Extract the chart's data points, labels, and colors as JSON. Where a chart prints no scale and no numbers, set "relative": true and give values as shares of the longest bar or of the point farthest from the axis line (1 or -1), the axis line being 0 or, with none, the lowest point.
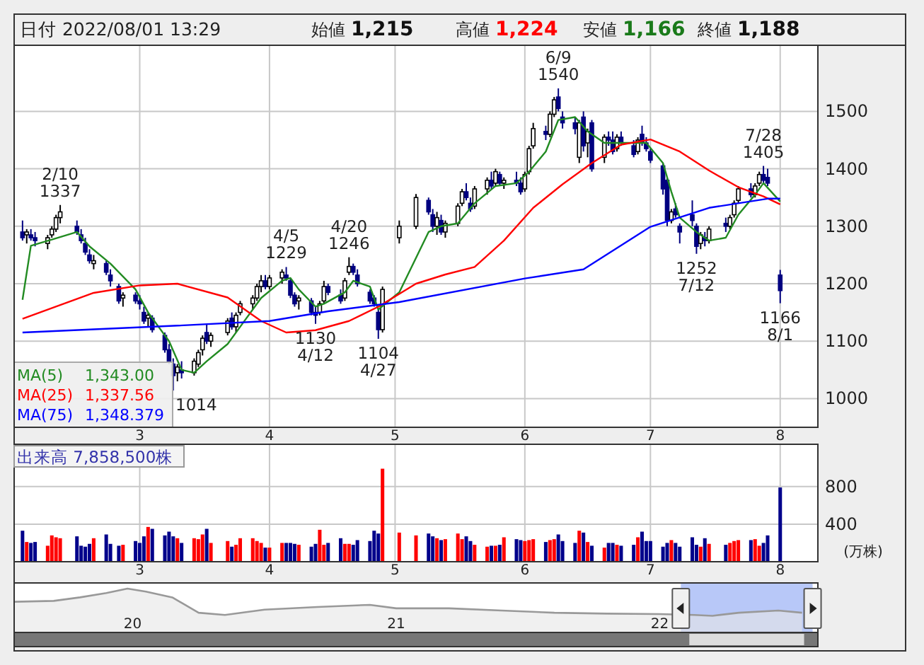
{
  "chart_data": [
    {
      "type": "candlestick",
      "title": "日付 2022/08/01 13:29",
      "annotations": [
        "始値 1,215",
        "高値 1,224",
        "安値 1,166",
        "終値 1,188",
        "1,343.00",
        "1,337.56",
        "1,348.379",
        {
          "text": "2/10\n1337",
          "x": "2022-02-10",
          "y": 1337
        },
        {
          "text": "1014",
          "x": "2022-03-09",
          "y": 1014
        },
        {
          "text": "4/5\n1229",
          "x": "2022-04-05",
          "y": 1229
        },
        {
          "text": "1130\n4/12",
          "x": "2022-04-12",
          "y": 1130
        },
        {
          "text": "4/20\n1246",
          "x": "2022-04-20",
          "y": 1246
        },
        {
          "text": "1104\n4/27",
          "x": "2022-04-27",
          "y": 1104
        },
        {
          "text": "6/9\n1540",
          "x": "2022-06-09",
          "y": 1540
        },
        {
          "text": "1252\n7/12",
          "x": "2022-07-12",
          "y": 1252
        },
        {
          "text": "7/28\n1405",
          "x": "2022-07-28",
          "y": 1405
        },
        {
          "text": "1166\n8/1",
          "x": "2022-08-01",
          "y": 1166
        }
      ],
      "x": [
        "2022-02-01",
        "2022-02-02",
        "2022-02-03",
        "2022-02-04",
        "2022-02-07",
        "2022-02-08",
        "2022-02-09",
        "2022-02-10",
        "2022-02-14",
        "2022-02-15",
        "2022-02-16",
        "2022-02-17",
        "2022-02-18",
        "2022-02-21",
        "2022-02-22",
        "2022-02-24",
        "2022-02-25",
        "2022-02-28",
        "2022-03-01",
        "2022-03-02",
        "2022-03-03",
        "2022-03-04",
        "2022-03-07",
        "2022-03-08",
        "2022-03-09",
        "2022-03-10",
        "2022-03-11",
        "2022-03-14",
        "2022-03-15",
        "2022-03-16",
        "2022-03-17",
        "2022-03-18",
        "2022-03-22",
        "2022-03-23",
        "2022-03-24",
        "2022-03-25",
        "2022-03-28",
        "2022-03-29",
        "2022-03-30",
        "2022-03-31",
        "2022-04-01",
        "2022-04-04",
        "2022-04-05",
        "2022-04-06",
        "2022-04-07",
        "2022-04-08",
        "2022-04-11",
        "2022-04-12",
        "2022-04-13",
        "2022-04-14",
        "2022-04-15",
        "2022-04-18",
        "2022-04-19",
        "2022-04-20",
        "2022-04-21",
        "2022-04-22",
        "2022-04-25",
        "2022-04-26",
        "2022-04-27",
        "2022-04-28",
        "2022-05-02",
        "2022-05-06",
        "2022-05-09",
        "2022-05-10",
        "2022-05-11",
        "2022-05-12",
        "2022-05-13",
        "2022-05-16",
        "2022-05-17",
        "2022-05-18",
        "2022-05-19",
        "2022-05-20",
        "2022-05-23",
        "2022-05-24",
        "2022-05-25",
        "2022-05-26",
        "2022-05-27",
        "2022-05-30",
        "2022-05-31",
        "2022-06-01",
        "2022-06-02",
        "2022-06-03",
        "2022-06-06",
        "2022-06-07",
        "2022-06-08",
        "2022-06-09",
        "2022-06-10",
        "2022-06-13",
        "2022-06-14",
        "2022-06-15",
        "2022-06-16",
        "2022-06-17",
        "2022-06-20",
        "2022-06-21",
        "2022-06-22",
        "2022-06-23",
        "2022-06-24",
        "2022-06-27",
        "2022-06-28",
        "2022-06-29",
        "2022-06-30",
        "2022-07-01",
        "2022-07-04",
        "2022-07-05",
        "2022-07-06",
        "2022-07-07",
        "2022-07-08",
        "2022-07-11",
        "2022-07-12",
        "2022-07-13",
        "2022-07-14",
        "2022-07-15",
        "2022-07-19",
        "2022-07-20",
        "2022-07-21",
        "2022-07-22",
        "2022-07-25",
        "2022-07-26",
        "2022-07-27",
        "2022-07-28",
        "2022-07-29",
        "2022-08-01"
      ],
      "ohlc": [
        [
          1290,
          1310,
          1275,
          1280
        ],
        [
          1285,
          1295,
          1270,
          1290
        ],
        [
          1285,
          1295,
          1275,
          1280
        ],
        [
          1280,
          1290,
          1265,
          1275
        ],
        [
          1270,
          1285,
          1260,
          1280
        ],
        [
          1285,
          1300,
          1280,
          1295
        ],
        [
          1295,
          1320,
          1290,
          1315
        ],
        [
          1315,
          1337,
          1305,
          1325
        ],
        [
          1300,
          1310,
          1285,
          1290
        ],
        [
          1285,
          1295,
          1270,
          1275
        ],
        [
          1270,
          1280,
          1250,
          1255
        ],
        [
          1250,
          1260,
          1235,
          1240
        ],
        [
          1235,
          1250,
          1225,
          1240
        ],
        [
          1235,
          1240,
          1215,
          1220
        ],
        [
          1215,
          1225,
          1195,
          1205
        ],
        [
          1195,
          1200,
          1165,
          1170
        ],
        [
          1175,
          1185,
          1160,
          1180
        ],
        [
          1180,
          1185,
          1165,
          1170
        ],
        [
          1170,
          1180,
          1155,
          1165
        ],
        [
          1150,
          1160,
          1130,
          1135
        ],
        [
          1140,
          1150,
          1125,
          1145
        ],
        [
          1140,
          1145,
          1115,
          1120
        ],
        [
          1110,
          1115,
          1080,
          1085
        ],
        [
          1085,
          1095,
          1060,
          1065
        ],
        [
          1060,
          1070,
          1014,
          1040
        ],
        [
          1045,
          1060,
          1030,
          1055
        ],
        [
          1050,
          1065,
          1035,
          1045
        ],
        [
          1045,
          1070,
          1040,
          1065
        ],
        [
          1060,
          1085,
          1055,
          1080
        ],
        [
          1085,
          1110,
          1075,
          1105
        ],
        [
          1115,
          1130,
          1095,
          1100
        ],
        [
          1100,
          1115,
          1090,
          1110
        ],
        [
          1115,
          1140,
          1110,
          1135
        ],
        [
          1140,
          1150,
          1120,
          1125
        ],
        [
          1125,
          1150,
          1115,
          1145
        ],
        [
          1150,
          1170,
          1145,
          1165
        ],
        [
          1165,
          1180,
          1155,
          1175
        ],
        [
          1175,
          1200,
          1170,
          1195
        ],
        [
          1195,
          1215,
          1185,
          1205
        ],
        [
          1205,
          1215,
          1190,
          1195
        ],
        [
          1195,
          1215,
          1190,
          1210
        ],
        [
          1210,
          1225,
          1200,
          1220
        ],
        [
          1215,
          1229,
          1205,
          1210
        ],
        [
          1205,
          1210,
          1175,
          1180
        ],
        [
          1180,
          1185,
          1160,
          1165
        ],
        [
          1170,
          1180,
          1155,
          1175
        ],
        [
          1170,
          1175,
          1145,
          1150
        ],
        [
          1150,
          1160,
          1130,
          1145
        ],
        [
          1150,
          1170,
          1145,
          1165
        ],
        [
          1170,
          1205,
          1165,
          1195
        ],
        [
          1195,
          1200,
          1180,
          1185
        ],
        [
          1180,
          1190,
          1165,
          1170
        ],
        [
          1175,
          1210,
          1170,
          1205
        ],
        [
          1220,
          1246,
          1215,
          1230
        ],
        [
          1230,
          1235,
          1215,
          1220
        ],
        [
          1215,
          1225,
          1195,
          1200
        ],
        [
          1185,
          1190,
          1165,
          1170
        ],
        [
          1175,
          1180,
          1160,
          1165
        ],
        [
          1150,
          1155,
          1104,
          1120
        ],
        [
          1120,
          1195,
          1115,
          1190
        ],
        [
          1280,
          1310,
          1270,
          1300
        ],
        [
          1300,
          1356,
          1295,
          1350
        ],
        [
          1345,
          1350,
          1320,
          1325
        ],
        [
          1320,
          1330,
          1290,
          1300
        ],
        [
          1300,
          1325,
          1285,
          1315
        ],
        [
          1310,
          1320,
          1285,
          1290
        ],
        [
          1290,
          1310,
          1280,
          1305
        ],
        [
          1305,
          1340,
          1300,
          1335
        ],
        [
          1340,
          1365,
          1335,
          1360
        ],
        [
          1360,
          1375,
          1345,
          1350
        ],
        [
          1340,
          1350,
          1325,
          1330
        ],
        [
          1335,
          1370,
          1330,
          1365
        ],
        [
          1365,
          1385,
          1355,
          1380
        ],
        [
          1380,
          1395,
          1365,
          1370
        ],
        [
          1375,
          1400,
          1370,
          1395
        ],
        [
          1390,
          1395,
          1370,
          1375
        ],
        [
          1375,
          1385,
          1365,
          1380
        ],
        [
          1380,
          1395,
          1370,
          1375
        ],
        [
          1375,
          1385,
          1355,
          1360
        ],
        [
          1365,
          1395,
          1360,
          1390
        ],
        [
          1395,
          1440,
          1390,
          1435
        ],
        [
          1440,
          1480,
          1435,
          1470
        ],
        [
          1465,
          1475,
          1450,
          1460
        ],
        [
          1460,
          1500,
          1455,
          1495
        ],
        [
          1495,
          1525,
          1490,
          1520
        ],
        [
          1525,
          1540,
          1500,
          1505
        ],
        [
          1490,
          1500,
          1470,
          1480
        ],
        [
          1480,
          1490,
          1460,
          1470
        ],
        [
          1420,
          1485,
          1410,
          1480
        ],
        [
          1490,
          1500,
          1430,
          1440
        ],
        [
          1445,
          1470,
          1420,
          1465
        ],
        [
          1480,
          1485,
          1395,
          1400
        ],
        [
          1420,
          1460,
          1410,
          1455
        ],
        [
          1455,
          1465,
          1440,
          1450
        ],
        [
          1450,
          1465,
          1425,
          1430
        ],
        [
          1435,
          1460,
          1430,
          1455
        ],
        [
          1455,
          1465,
          1440,
          1445
        ],
        [
          1440,
          1450,
          1420,
          1425
        ],
        [
          1430,
          1455,
          1425,
          1450
        ],
        [
          1460,
          1475,
          1440,
          1445
        ],
        [
          1445,
          1455,
          1430,
          1435
        ],
        [
          1430,
          1435,
          1410,
          1415
        ],
        [
          1405,
          1410,
          1355,
          1365
        ],
        [
          1380,
          1385,
          1300,
          1310
        ],
        [
          1310,
          1330,
          1305,
          1325
        ],
        [
          1330,
          1340,
          1315,
          1320
        ],
        [
          1300,
          1305,
          1270,
          1290
        ],
        [
          1320,
          1345,
          1300,
          1310
        ],
        [
          1300,
          1305,
          1252,
          1265
        ],
        [
          1270,
          1290,
          1260,
          1285
        ],
        [
          1280,
          1290,
          1265,
          1275
        ],
        [
          1275,
          1300,
          1270,
          1295
        ],
        [
          1305,
          1315,
          1290,
          1300
        ],
        [
          1300,
          1320,
          1295,
          1315
        ],
        [
          1320,
          1345,
          1315,
          1340
        ],
        [
          1345,
          1370,
          1340,
          1365
        ],
        [
          1365,
          1375,
          1350,
          1355
        ],
        [
          1355,
          1375,
          1350,
          1370
        ],
        [
          1375,
          1395,
          1370,
          1390
        ],
        [
          1390,
          1405,
          1375,
          1380
        ],
        [
          1385,
          1400,
          1370,
          1375
        ],
        [
          1215,
          1224,
          1166,
          1188
        ]
      ],
      "series": [
        {
          "name": "MA(5)",
          "type": "line",
          "color": "#228b22",
          "x": [
            "2022-02-01",
            "2022-02-03",
            "2022-02-09",
            "2022-02-14",
            "2022-02-17",
            "2022-02-22",
            "2022-02-28",
            "2022-03-03",
            "2022-03-08",
            "2022-03-11",
            "2022-03-14",
            "2022-03-17",
            "2022-03-22",
            "2022-03-25",
            "2022-03-30",
            "2022-04-04",
            "2022-04-06",
            "2022-04-08",
            "2022-04-12",
            "2022-04-14",
            "2022-04-19",
            "2022-04-21",
            "2022-04-25",
            "2022-04-27",
            "2022-05-02",
            "2022-05-09",
            "2022-05-12",
            "2022-05-16",
            "2022-05-20",
            "2022-05-25",
            "2022-05-30",
            "2022-06-02",
            "2022-06-06",
            "2022-06-09",
            "2022-06-13",
            "2022-06-16",
            "2022-06-20",
            "2022-06-24",
            "2022-06-30",
            "2022-07-04",
            "2022-07-06",
            "2022-07-08",
            "2022-07-12",
            "2022-07-15",
            "2022-07-19",
            "2022-07-22",
            "2022-07-26",
            "2022-07-28",
            "2022-08-01"
          ],
          "values": [
            1172,
            1266,
            1279,
            1290,
            1265,
            1235,
            1190,
            1150,
            1100,
            1050,
            1045,
            1065,
            1095,
            1125,
            1175,
            1205,
            1210,
            1190,
            1160,
            1165,
            1185,
            1205,
            1195,
            1155,
            1185,
            1290,
            1300,
            1305,
            1340,
            1370,
            1375,
            1395,
            1430,
            1485,
            1490,
            1465,
            1445,
            1445,
            1445,
            1410,
            1360,
            1315,
            1290,
            1275,
            1280,
            1320,
            1355,
            1375,
            1343
          ]
        },
        {
          "name": "MA(25)",
          "type": "line",
          "color": "#ff0000",
          "x": [
            "2022-02-01",
            "2022-02-18",
            "2022-03-01",
            "2022-03-10",
            "2022-03-22",
            "2022-03-30",
            "2022-04-05",
            "2022-04-12",
            "2022-04-20",
            "2022-04-27",
            "2022-05-06",
            "2022-05-13",
            "2022-05-20",
            "2022-05-27",
            "2022-06-03",
            "2022-06-10",
            "2022-06-17",
            "2022-06-24",
            "2022-07-01",
            "2022-07-08",
            "2022-07-15",
            "2022-07-22",
            "2022-07-28",
            "2022-08-01"
          ],
          "values": [
            1139,
            1184,
            1197,
            1200,
            1176,
            1135,
            1115,
            1119,
            1135,
            1160,
            1200,
            1216,
            1229,
            1275,
            1332,
            1373,
            1410,
            1442,
            1451,
            1430,
            1397,
            1368,
            1352,
            1338
          ]
        },
        {
          "name": "MA(75)",
          "type": "line",
          "color": "#0000ff",
          "x": [
            "2022-02-01",
            "2022-03-10",
            "2022-04-01",
            "2022-04-15",
            "2022-05-02",
            "2022-06-01",
            "2022-06-15",
            "2022-07-01",
            "2022-07-15",
            "2022-07-29",
            "2022-08-01"
          ],
          "values": [
            1115,
            1127,
            1135,
            1152,
            1168,
            1209,
            1225,
            1299,
            1332,
            1348,
            1348
          ]
        }
      ],
      "xlim": [
        "2022-01-30",
        "2022-08-10"
      ],
      "xticks": [
        {
          "value": "2022-03-01",
          "label": "3"
        },
        {
          "value": "2022-04-01",
          "label": "4"
        },
        {
          "value": "2022-05-01",
          "label": "5"
        },
        {
          "value": "2022-06-01",
          "label": "6"
        },
        {
          "value": "2022-07-01",
          "label": "7"
        },
        {
          "value": "2022-08-01",
          "label": "8"
        }
      ],
      "ylim": [
        950,
        1615
      ],
      "yticks": [
        1000,
        1100,
        1200,
        1300,
        1400,
        1500
      ],
      "grid": true,
      "legend": "bottom left"
    },
    {
      "type": "bar",
      "title": "出来高 7,858,500株",
      "ylabel": "(万株)",
      "x": [
        "2022-02-01",
        "2022-02-02",
        "2022-02-03",
        "2022-02-04",
        "2022-02-07",
        "2022-02-08",
        "2022-02-09",
        "2022-02-10",
        "2022-02-14",
        "2022-02-15",
        "2022-02-16",
        "2022-02-17",
        "2022-02-18",
        "2022-02-21",
        "2022-02-22",
        "2022-02-24",
        "2022-02-25",
        "2022-02-28",
        "2022-03-01",
        "2022-03-02",
        "2022-03-03",
        "2022-03-04",
        "2022-03-07",
        "2022-03-08",
        "2022-03-09",
        "2022-03-10",
        "2022-03-11",
        "2022-03-14",
        "2022-03-15",
        "2022-03-16",
        "2022-03-17",
        "2022-03-18",
        "2022-03-22",
        "2022-03-23",
        "2022-03-24",
        "2022-03-25",
        "2022-03-28",
        "2022-03-29",
        "2022-03-30",
        "2022-03-31",
        "2022-04-01",
        "2022-04-04",
        "2022-04-05",
        "2022-04-06",
        "2022-04-07",
        "2022-04-08",
        "2022-04-11",
        "2022-04-12",
        "2022-04-13",
        "2022-04-14",
        "2022-04-15",
        "2022-04-18",
        "2022-04-19",
        "2022-04-20",
        "2022-04-21",
        "2022-04-22",
        "2022-04-25",
        "2022-04-26",
        "2022-04-27",
        "2022-04-28",
        "2022-05-02",
        "2022-05-06",
        "2022-05-09",
        "2022-05-10",
        "2022-05-11",
        "2022-05-12",
        "2022-05-13",
        "2022-05-16",
        "2022-05-17",
        "2022-05-18",
        "2022-05-19",
        "2022-05-20",
        "2022-05-23",
        "2022-05-24",
        "2022-05-25",
        "2022-05-26",
        "2022-05-27",
        "2022-05-30",
        "2022-05-31",
        "2022-06-01",
        "2022-06-02",
        "2022-06-03",
        "2022-06-06",
        "2022-06-07",
        "2022-06-08",
        "2022-06-09",
        "2022-06-10",
        "2022-06-13",
        "2022-06-14",
        "2022-06-15",
        "2022-06-16",
        "2022-06-17",
        "2022-06-20",
        "2022-06-21",
        "2022-06-22",
        "2022-06-23",
        "2022-06-24",
        "2022-06-27",
        "2022-06-28",
        "2022-06-29",
        "2022-06-30",
        "2022-07-01",
        "2022-07-04",
        "2022-07-05",
        "2022-07-06",
        "2022-07-07",
        "2022-07-08",
        "2022-07-11",
        "2022-07-12",
        "2022-07-13",
        "2022-07-14",
        "2022-07-15",
        "2022-07-19",
        "2022-07-20",
        "2022-07-21",
        "2022-07-22",
        "2022-07-25",
        "2022-07-26",
        "2022-07-27",
        "2022-07-28",
        "2022-07-29",
        "2022-08-01"
      ],
      "values": [
        330,
        210,
        200,
        210,
        170,
        280,
        260,
        250,
        270,
        170,
        160,
        190,
        250,
        290,
        190,
        170,
        180,
        220,
        200,
        270,
        370,
        350,
        280,
        320,
        270,
        250,
        200,
        250,
        240,
        290,
        350,
        200,
        220,
        160,
        180,
        250,
        250,
        220,
        200,
        150,
        150,
        200,
        200,
        200,
        190,
        180,
        160,
        190,
        340,
        180,
        200,
        250,
        190,
        190,
        180,
        230,
        220,
        330,
        300,
        990,
        310,
        280,
        300,
        270,
        250,
        230,
        240,
        300,
        240,
        270,
        220,
        180,
        160,
        170,
        170,
        180,
        260,
        240,
        230,
        220,
        230,
        240,
        210,
        230,
        240,
        290,
        220,
        200,
        330,
        310,
        210,
        170,
        150,
        200,
        200,
        180,
        170,
        180,
        260,
        320,
        220,
        220,
        160,
        200,
        230,
        200,
        160,
        260,
        180,
        160,
        250,
        190,
        180,
        200,
        220,
        230,
        230,
        240,
        170,
        200,
        280,
        790
      ],
      "colors": [
        "#00008b",
        "#ff0000",
        "#00008b",
        "#00008b",
        "#ff0000",
        "#ff0000",
        "#ff0000",
        "#ff0000",
        "#00008b",
        "#00008b",
        "#00008b",
        "#00008b",
        "#ff0000",
        "#00008b",
        "#00008b",
        "#00008b",
        "#ff0000",
        "#00008b",
        "#00008b",
        "#00008b",
        "#ff0000",
        "#00008b",
        "#00008b",
        "#00008b",
        "#00008b",
        "#ff0000",
        "#00008b",
        "#ff0000",
        "#ff0000",
        "#ff0000",
        "#00008b",
        "#ff0000",
        "#ff0000",
        "#00008b",
        "#ff0000",
        "#ff0000",
        "#ff0000",
        "#ff0000",
        "#ff0000",
        "#00008b",
        "#ff0000",
        "#ff0000",
        "#00008b",
        "#00008b",
        "#00008b",
        "#ff0000",
        "#00008b",
        "#00008b",
        "#ff0000",
        "#ff0000",
        "#00008b",
        "#00008b",
        "#ff0000",
        "#ff0000",
        "#00008b",
        "#00008b",
        "#00008b",
        "#00008b",
        "#00008b",
        "#ff0000",
        "#ff0000",
        "#ff0000",
        "#00008b",
        "#00008b",
        "#ff0000",
        "#00008b",
        "#ff0000",
        "#ff0000",
        "#ff0000",
        "#00008b",
        "#00008b",
        "#ff0000",
        "#ff0000",
        "#00008b",
        "#ff0000",
        "#00008b",
        "#ff0000",
        "#00008b",
        "#00008b",
        "#ff0000",
        "#ff0000",
        "#ff0000",
        "#00008b",
        "#ff0000",
        "#ff0000",
        "#00008b",
        "#00008b",
        "#00008b",
        "#ff0000",
        "#00008b",
        "#ff0000",
        "#00008b",
        "#ff0000",
        "#00008b",
        "#00008b",
        "#ff0000",
        "#00008b",
        "#00008b",
        "#ff0000",
        "#00008b",
        "#00008b",
        "#00008b",
        "#00008b",
        "#00008b",
        "#ff0000",
        "#00008b",
        "#00008b",
        "#00008b",
        "#00008b",
        "#ff0000",
        "#00008b",
        "#ff0000",
        "#00008b",
        "#ff0000",
        "#ff0000",
        "#ff0000",
        "#00008b",
        "#ff0000",
        "#ff0000",
        "#00008b",
        "#00008b",
        "#00008b"
      ],
      "xlim": [
        "2022-01-30",
        "2022-08-10"
      ],
      "xticks": [
        {
          "value": "2022-03-01",
          "label": "3"
        },
        {
          "value": "2022-04-01",
          "label": "4"
        },
        {
          "value": "2022-05-01",
          "label": "5"
        },
        {
          "value": "2022-06-01",
          "label": "6"
        },
        {
          "value": "2022-07-01",
          "label": "7"
        },
        {
          "value": "2022-08-01",
          "label": "8"
        }
      ],
      "ylim": [
        0,
        1250
      ],
      "yticks": [
        400,
        800
      ],
      "grid": true
    },
    {
      "type": "area",
      "relative": true,
      "tick_labels": "x",
      "color": "#999999",
      "x": [
        2019.55,
        2019.7,
        2019.8,
        2019.9,
        2019.98,
        2020.05,
        2020.15,
        2020.25,
        2020.35,
        2020.5,
        2020.7,
        2020.9,
        2021.0,
        2021.2,
        2021.4,
        2021.6,
        2021.8,
        2022.0,
        2022.13,
        2022.2,
        2022.3,
        2022.45,
        2022.54
      ],
      "values": [
        0.7,
        0.72,
        0.8,
        0.9,
        1.0,
        0.93,
        0.8,
        0.45,
        0.4,
        0.52,
        0.58,
        0.63,
        0.55,
        0.55,
        0.5,
        0.45,
        0.43,
        0.42,
        0.4,
        0.38,
        0.45,
        0.5,
        0.45
      ],
      "xlim": [
        2019.55,
        2022.6
      ],
      "xticks": [
        {
          "value": 2020,
          "label": "20"
        },
        {
          "value": 2021,
          "label": "21"
        },
        {
          "value": 2022,
          "label": "22"
        }
      ],
      "bands": [
        {
          "axis": "x",
          "from": 2022.08,
          "to": 2022.58,
          "color": "#b8c8f8"
        }
      ]
    }
  ]
}
